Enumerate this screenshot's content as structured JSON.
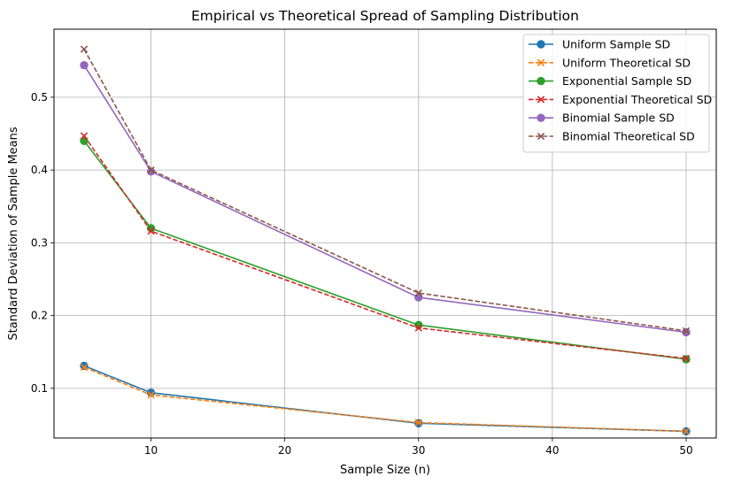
{
  "chart_data": {
    "type": "line",
    "title": "Empirical vs Theoretical Spread of Sampling Distribution",
    "xlabel": "Sample Size (n)",
    "ylabel": "Standard Deviation of Sample Means",
    "x": [
      5,
      10,
      30,
      50
    ],
    "xlim": [
      2.75,
      52.25
    ],
    "ylim": [
      0.0318,
      0.5935
    ],
    "xticks": [
      10,
      20,
      30,
      40,
      50
    ],
    "yticks": [
      0.1,
      0.2,
      0.3,
      0.4,
      0.5
    ],
    "xtick_labels": [
      "10",
      "20",
      "30",
      "40",
      "50"
    ],
    "ytick_labels": [
      "0.1",
      "0.2",
      "0.3",
      "0.4",
      "0.5"
    ],
    "grid": true,
    "legend_position": "top-right",
    "series": [
      {
        "name": "Uniform Sample SD",
        "values": [
          0.131,
          0.094,
          0.052,
          0.041
        ],
        "color": "#1f77b4",
        "dashed": false,
        "marker": "circle"
      },
      {
        "name": "Uniform Theoretical SD",
        "values": [
          0.129,
          0.091,
          0.053,
          0.041
        ],
        "color": "#ff7f0e",
        "dashed": true,
        "marker": "x"
      },
      {
        "name": "Exponential Sample SD",
        "values": [
          0.44,
          0.32,
          0.187,
          0.14
        ],
        "color": "#2ca02c",
        "dashed": false,
        "marker": "circle"
      },
      {
        "name": "Exponential Theoretical SD",
        "values": [
          0.447,
          0.316,
          0.183,
          0.141
        ],
        "color": "#d62728",
        "dashed": true,
        "marker": "x"
      },
      {
        "name": "Binomial Sample SD",
        "values": [
          0.544,
          0.398,
          0.225,
          0.177
        ],
        "color": "#9467bd",
        "dashed": false,
        "marker": "circle"
      },
      {
        "name": "Binomial Theoretical SD",
        "values": [
          0.566,
          0.4,
          0.231,
          0.179
        ],
        "color": "#8c564b",
        "dashed": true,
        "marker": "x"
      }
    ]
  }
}
